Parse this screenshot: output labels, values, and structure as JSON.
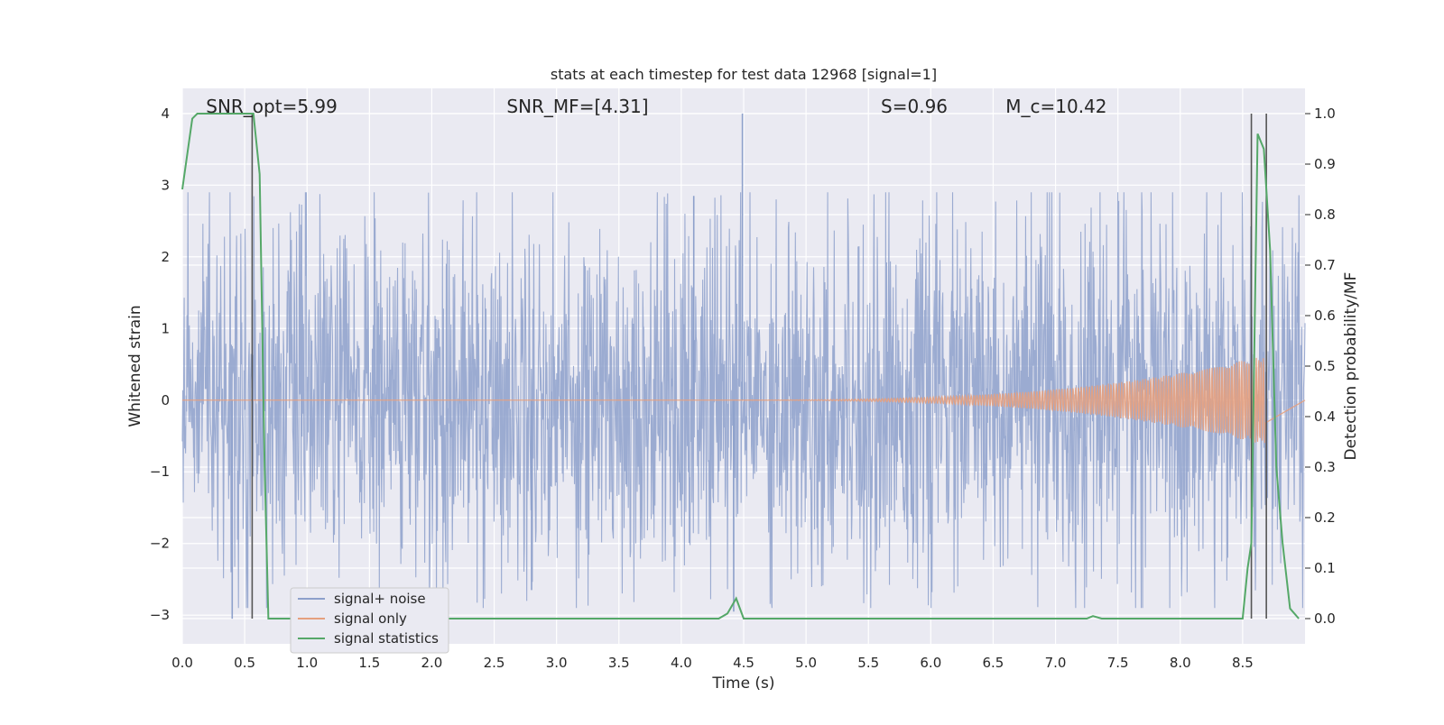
{
  "chart_data": {
    "type": "line",
    "title": "stats at each timestep for test data 12968 [signal=1]",
    "xlabel": "Time (s)",
    "ylabel": "Whitened strain",
    "y2label": "Detection probability/MF",
    "xlim": [
      0.0,
      9.0
    ],
    "ylim": [
      -3.4,
      4.35
    ],
    "y2lim": [
      -0.05,
      1.05
    ],
    "x_ticks": [
      0.0,
      0.5,
      1.0,
      1.5,
      2.0,
      2.5,
      3.0,
      3.5,
      4.0,
      4.5,
      5.0,
      5.5,
      6.0,
      6.5,
      7.0,
      7.5,
      8.0,
      8.5
    ],
    "x_tick_labels": [
      "0.0",
      "0.5",
      "1.0",
      "1.5",
      "2.0",
      "2.5",
      "3.0",
      "3.5",
      "4.0",
      "4.5",
      "5.0",
      "5.5",
      "6.0",
      "6.5",
      "7.0",
      "7.5",
      "8.0",
      "8.5"
    ],
    "y_ticks": [
      -3,
      -2,
      -1,
      0,
      1,
      2,
      3,
      4
    ],
    "y_tick_labels": [
      "−3",
      "−2",
      "−1",
      "0",
      "1",
      "2",
      "3",
      "4"
    ],
    "y2_ticks": [
      0.0,
      0.1,
      0.2,
      0.3,
      0.4,
      0.5,
      0.6,
      0.7,
      0.8,
      0.9,
      1.0
    ],
    "y2_tick_labels": [
      "0.0",
      "0.1",
      "0.2",
      "0.3",
      "0.4",
      "0.5",
      "0.6",
      "0.7",
      "0.8",
      "0.9",
      "1.0"
    ],
    "grid": true,
    "legend_position": "lower-left",
    "annotations": [
      {
        "text": "SNR_opt=5.99",
        "x": 0.19
      },
      {
        "text": "SNR_MF=[4.31]",
        "x": 2.6
      },
      {
        "text": "S=0.96",
        "x": 5.6
      },
      {
        "text": "M_c=10.42",
        "x": 6.6
      }
    ],
    "vertical_lines_x": [
      0.56,
      8.57,
      8.69
    ],
    "vertical_line_color": "#555555",
    "series": [
      {
        "name": "signal+ noise",
        "color": "#8da0cb",
        "axis": "left",
        "note": "dense whitened strain samples, envelope approx ±2 with spikes",
        "peaks": [
          {
            "x": 4.49,
            "y": 4.0
          },
          {
            "x": 4.1,
            "y": 2.85
          },
          {
            "x": 4.42,
            "y": -2.95
          },
          {
            "x": 2.8,
            "y": -2.65
          },
          {
            "x": 0.4,
            "y": -3.05
          }
        ],
        "envelope": 2.0
      },
      {
        "name": "signal only",
        "color": "#e5a07e",
        "axis": "left",
        "chirp": {
          "start_x": 4.0,
          "peak_x": 8.62,
          "peak_amplitude": 0.6,
          "end_x": 8.68
        }
      },
      {
        "name": "signal statistics",
        "color": "#55a868",
        "axis": "right",
        "points": [
          [
            0.0,
            0.85
          ],
          [
            0.08,
            0.99
          ],
          [
            0.12,
            1.0
          ],
          [
            0.52,
            1.0
          ],
          [
            0.57,
            1.0
          ],
          [
            0.62,
            0.88
          ],
          [
            0.66,
            0.3
          ],
          [
            0.69,
            0.0
          ],
          [
            4.3,
            0.0
          ],
          [
            4.37,
            0.01
          ],
          [
            4.44,
            0.04
          ],
          [
            4.5,
            0.0
          ],
          [
            7.25,
            0.0
          ],
          [
            7.3,
            0.005
          ],
          [
            7.37,
            0.0
          ],
          [
            8.5,
            0.0
          ],
          [
            8.54,
            0.1
          ],
          [
            8.57,
            0.15
          ],
          [
            8.62,
            0.96
          ],
          [
            8.67,
            0.93
          ],
          [
            8.72,
            0.73
          ],
          [
            8.77,
            0.3
          ],
          [
            8.82,
            0.15
          ],
          [
            8.88,
            0.02
          ],
          [
            8.95,
            0.0
          ]
        ]
      }
    ]
  }
}
